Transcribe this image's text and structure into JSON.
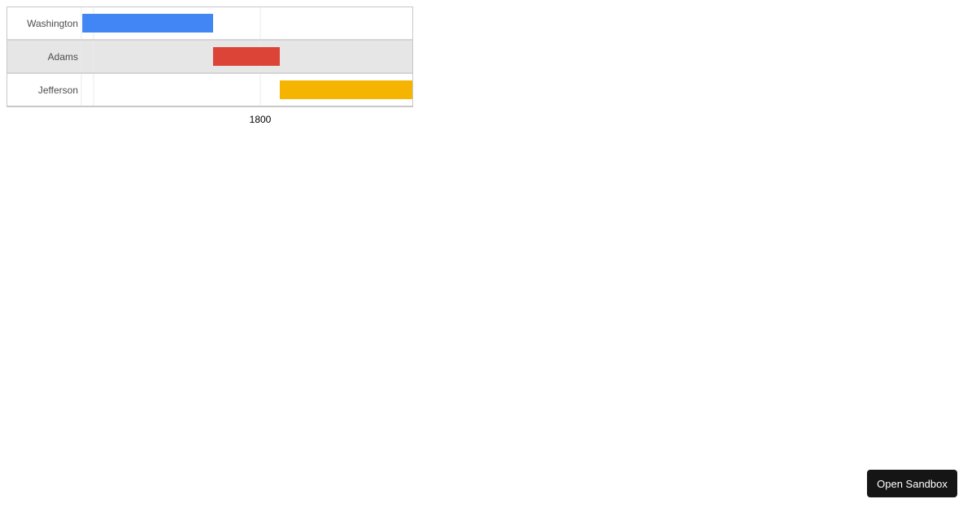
{
  "chart_data": {
    "type": "timeline",
    "rows": [
      {
        "label": "Washington",
        "start": "1789-04-30",
        "end": "1797-03-04",
        "color": "#4285f4"
      },
      {
        "label": "Adams",
        "start": "1797-03-04",
        "end": "1801-03-04",
        "color": "#db4437"
      },
      {
        "label": "Jefferson",
        "start": "1801-03-04",
        "end": "1809-03-04",
        "color": "#f4b400"
      }
    ],
    "x_ticks": [
      "1800"
    ],
    "gridlines": [
      1790,
      1800
    ],
    "row_backgrounds": [
      "#ffffff",
      "#e6e6e6",
      "#ffffff"
    ]
  },
  "sandbox_button": {
    "label": "Open Sandbox"
  }
}
